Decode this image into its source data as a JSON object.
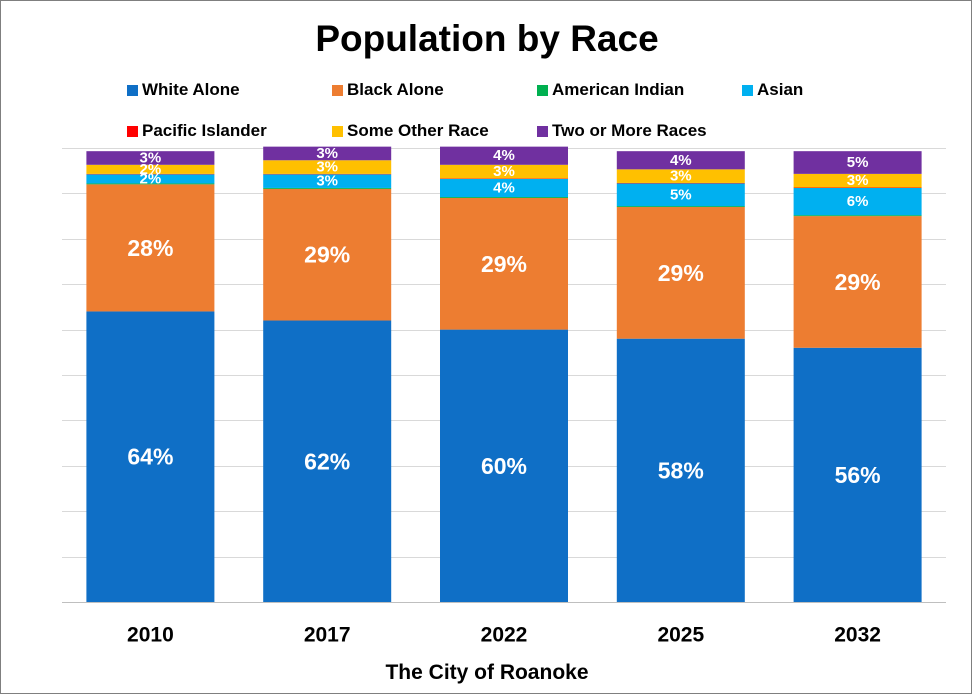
{
  "chart_data": {
    "type": "bar",
    "stacked": true,
    "title": "Population by Race",
    "xlabel": "The City of Roanoke",
    "ylabel": "",
    "ylim": [
      0,
      100
    ],
    "grid": true,
    "legend_position": "top",
    "categories": [
      "2010",
      "2017",
      "2022",
      "2025",
      "2032"
    ],
    "series": [
      {
        "name": "White Alone",
        "color": "#0f6fc6",
        "values": [
          64,
          62,
          60,
          58,
          56
        ],
        "labels": [
          "64%",
          "62%",
          "60%",
          "58%",
          "56%"
        ]
      },
      {
        "name": "Black Alone",
        "color": "#ed7d31",
        "values": [
          28,
          29,
          29,
          29,
          29
        ],
        "labels": [
          "28%",
          "29%",
          "29%",
          "29%",
          "29%"
        ]
      },
      {
        "name": "American Indian",
        "color": "#00b050",
        "values": [
          0.2,
          0.2,
          0.2,
          0.2,
          0.2
        ],
        "labels": [
          "",
          "",
          "",
          "",
          ""
        ]
      },
      {
        "name": "Asian",
        "color": "#00b0f0",
        "values": [
          2,
          3,
          4,
          5,
          6
        ],
        "labels": [
          "2%",
          "3%",
          "4%",
          "5%",
          "6%"
        ]
      },
      {
        "name": "Pacific Islander",
        "color": "#ff0000",
        "values": [
          0.1,
          0.1,
          0.1,
          0.1,
          0.1
        ],
        "labels": [
          "",
          "",
          "",
          "",
          ""
        ]
      },
      {
        "name": "Some Other Race",
        "color": "#ffc000",
        "values": [
          2,
          3,
          3,
          3,
          3
        ],
        "labels": [
          "2%",
          "3%",
          "3%",
          "3%",
          "3%"
        ]
      },
      {
        "name": "Two or More Races",
        "color": "#7030a0",
        "values": [
          3,
          3,
          4,
          4,
          5
        ],
        "labels": [
          "3%",
          "3%",
          "4%",
          "4%",
          "5%"
        ]
      }
    ]
  }
}
